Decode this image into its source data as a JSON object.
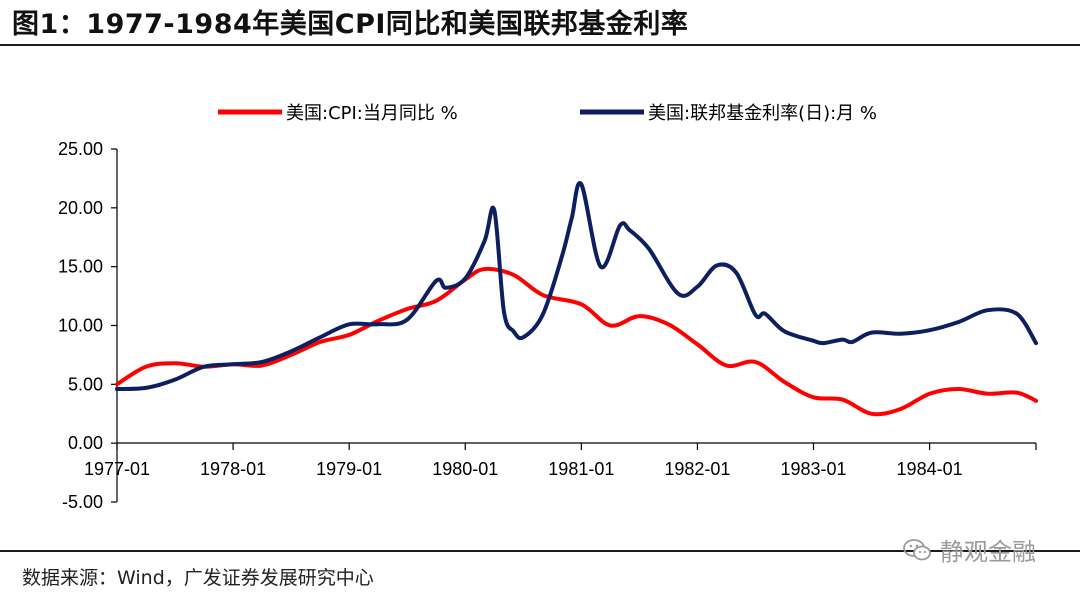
{
  "header": {
    "title": "图1：1977-1984年美国CPI同比和美国联邦基金利率"
  },
  "footer": {
    "source": "数据来源：Wind，广发证券发展研究中心",
    "watermark": "静观金融"
  },
  "chart_data": {
    "type": "line",
    "title": "图1：1977-1984年美国CPI同比和美国联邦基金利率",
    "xlabel": "",
    "ylabel": "",
    "ylim": [
      -5,
      25
    ],
    "yticks": [
      "-5.00",
      "0.00",
      "5.00",
      "10.00",
      "15.00",
      "20.00",
      "25.00"
    ],
    "xticks": [
      "1977-01",
      "1978-01",
      "1979-01",
      "1980-01",
      "1981-01",
      "1982-01",
      "1983-01",
      "1984-01"
    ],
    "legend_position": "top",
    "grid": false,
    "series": [
      {
        "name": "美国:CPI:当月同比 %",
        "color": "#ff0000",
        "x": [
          "1977-01",
          "1977-04",
          "1977-07",
          "1977-10",
          "1978-01",
          "1978-04",
          "1978-07",
          "1978-10",
          "1979-01",
          "1979-04",
          "1979-07",
          "1979-10",
          "1980-01",
          "1980-03",
          "1980-06",
          "1980-09",
          "1981-01",
          "1981-04",
          "1981-07",
          "1981-10",
          "1982-01",
          "1982-04",
          "1982-07",
          "1982-10",
          "1983-01",
          "1983-04",
          "1983-07",
          "1983-10",
          "1984-01",
          "1984-04",
          "1984-07",
          "1984-10",
          "1984-12"
        ],
        "values": [
          5.0,
          6.5,
          6.8,
          6.5,
          6.7,
          6.6,
          7.5,
          8.6,
          9.2,
          10.4,
          11.4,
          12.1,
          13.9,
          14.8,
          14.3,
          12.6,
          11.8,
          10.0,
          10.8,
          10.1,
          8.4,
          6.6,
          6.9,
          5.2,
          3.9,
          3.7,
          2.5,
          2.9,
          4.2,
          4.6,
          4.2,
          4.3,
          3.6
        ]
      },
      {
        "name": "美国:联邦基金利率(日):月 %",
        "color": "#0c1f5e",
        "x": [
          "1977-01",
          "1977-04",
          "1977-07",
          "1977-10",
          "1978-01",
          "1978-04",
          "1978-07",
          "1978-10",
          "1979-01",
          "1979-04",
          "1979-07",
          "1979-10",
          "1979-11",
          "1980-01",
          "1980-03",
          "1980-04",
          "1980-05",
          "1980-06",
          "1980-07",
          "1980-09",
          "1980-11",
          "1980-12",
          "1981-01",
          "1981-03",
          "1981-05",
          "1981-06",
          "1981-08",
          "1981-11",
          "1982-01",
          "1982-03",
          "1982-05",
          "1982-07",
          "1982-08",
          "1982-10",
          "1983-01",
          "1983-02",
          "1983-04",
          "1983-05",
          "1983-07",
          "1983-10",
          "1984-01",
          "1984-04",
          "1984-07",
          "1984-10",
          "1984-12"
        ],
        "values": [
          4.6,
          4.7,
          5.4,
          6.5,
          6.7,
          6.9,
          7.8,
          9.0,
          10.1,
          10.1,
          10.5,
          13.8,
          13.2,
          14.0,
          17.2,
          19.8,
          11.2,
          9.5,
          9.0,
          10.9,
          15.9,
          19.1,
          22.0,
          15.0,
          18.5,
          18.1,
          16.5,
          12.7,
          13.3,
          15.1,
          14.5,
          10.9,
          11.0,
          9.5,
          8.7,
          8.5,
          8.8,
          8.6,
          9.4,
          9.3,
          9.6,
          10.3,
          11.3,
          11.0,
          8.5
        ]
      }
    ]
  }
}
